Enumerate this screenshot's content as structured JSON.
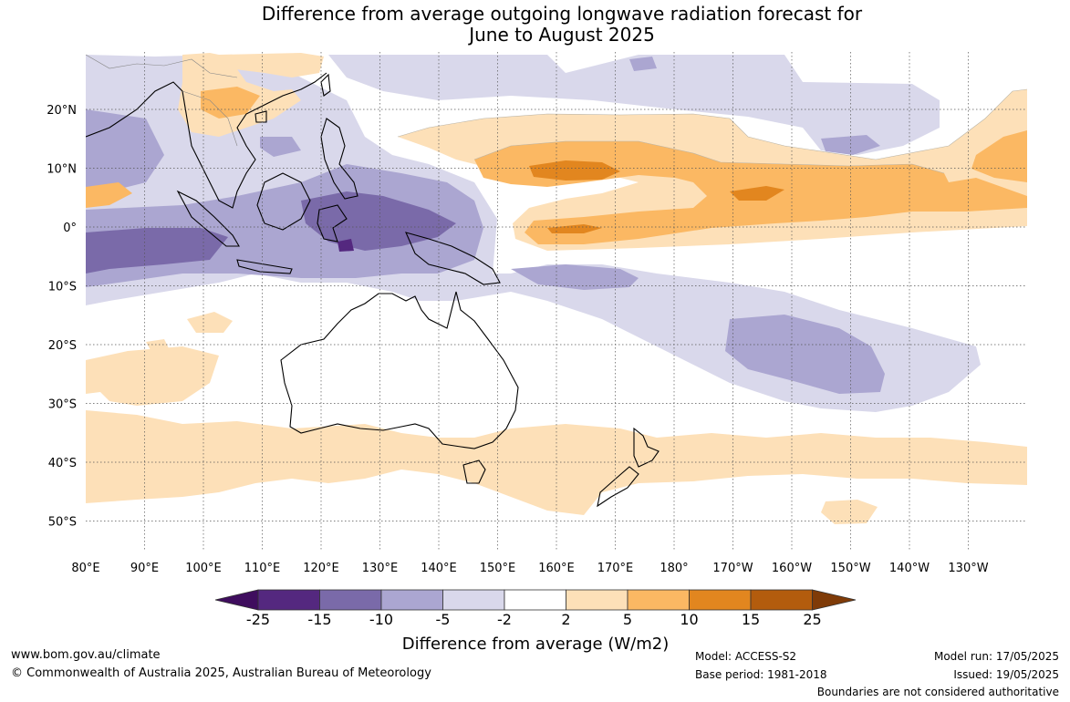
{
  "title": {
    "line1": "Difference from average outgoing longwave radiation forecast for",
    "line2": "June to August 2025"
  },
  "map": {
    "lon_labels": [
      "80°E",
      "90°E",
      "100°E",
      "110°E",
      "120°E",
      "130°E",
      "140°E",
      "150°E",
      "160°E",
      "170°E",
      "180°",
      "170°W",
      "160°W",
      "150°W",
      "140°W",
      "130°W"
    ],
    "lat_labels": [
      "20°N",
      "10°N",
      "0°",
      "10°S",
      "20°S",
      "30°S",
      "40°S",
      "50°S"
    ]
  },
  "colorbar": {
    "tick_labels": [
      "-25",
      "-15",
      "-10",
      "-5",
      "-2",
      "2",
      "5",
      "10",
      "15",
      "25"
    ],
    "title": "Difference from average (W/m2)",
    "colors": [
      "#3f0d5e",
      "#54287f",
      "#7a6aa9",
      "#aba6d1",
      "#d9d8eb",
      "#ffffff",
      "#fde0b8",
      "#fbb863",
      "#e2861f",
      "#b35c0d",
      "#7f3b08"
    ]
  },
  "footer": {
    "website": "www.bom.gov.au/climate",
    "copyright": "© Commonwealth of Australia 2025, Australian Bureau of Meteorology",
    "model": "Model: ACCESS-S2",
    "base_period": "Base period: 1981-2018",
    "model_run": "Model run: 17/05/2025",
    "issued": "Issued: 19/05/2025",
    "disclaimer": "Boundaries are not considered authoritative"
  }
}
